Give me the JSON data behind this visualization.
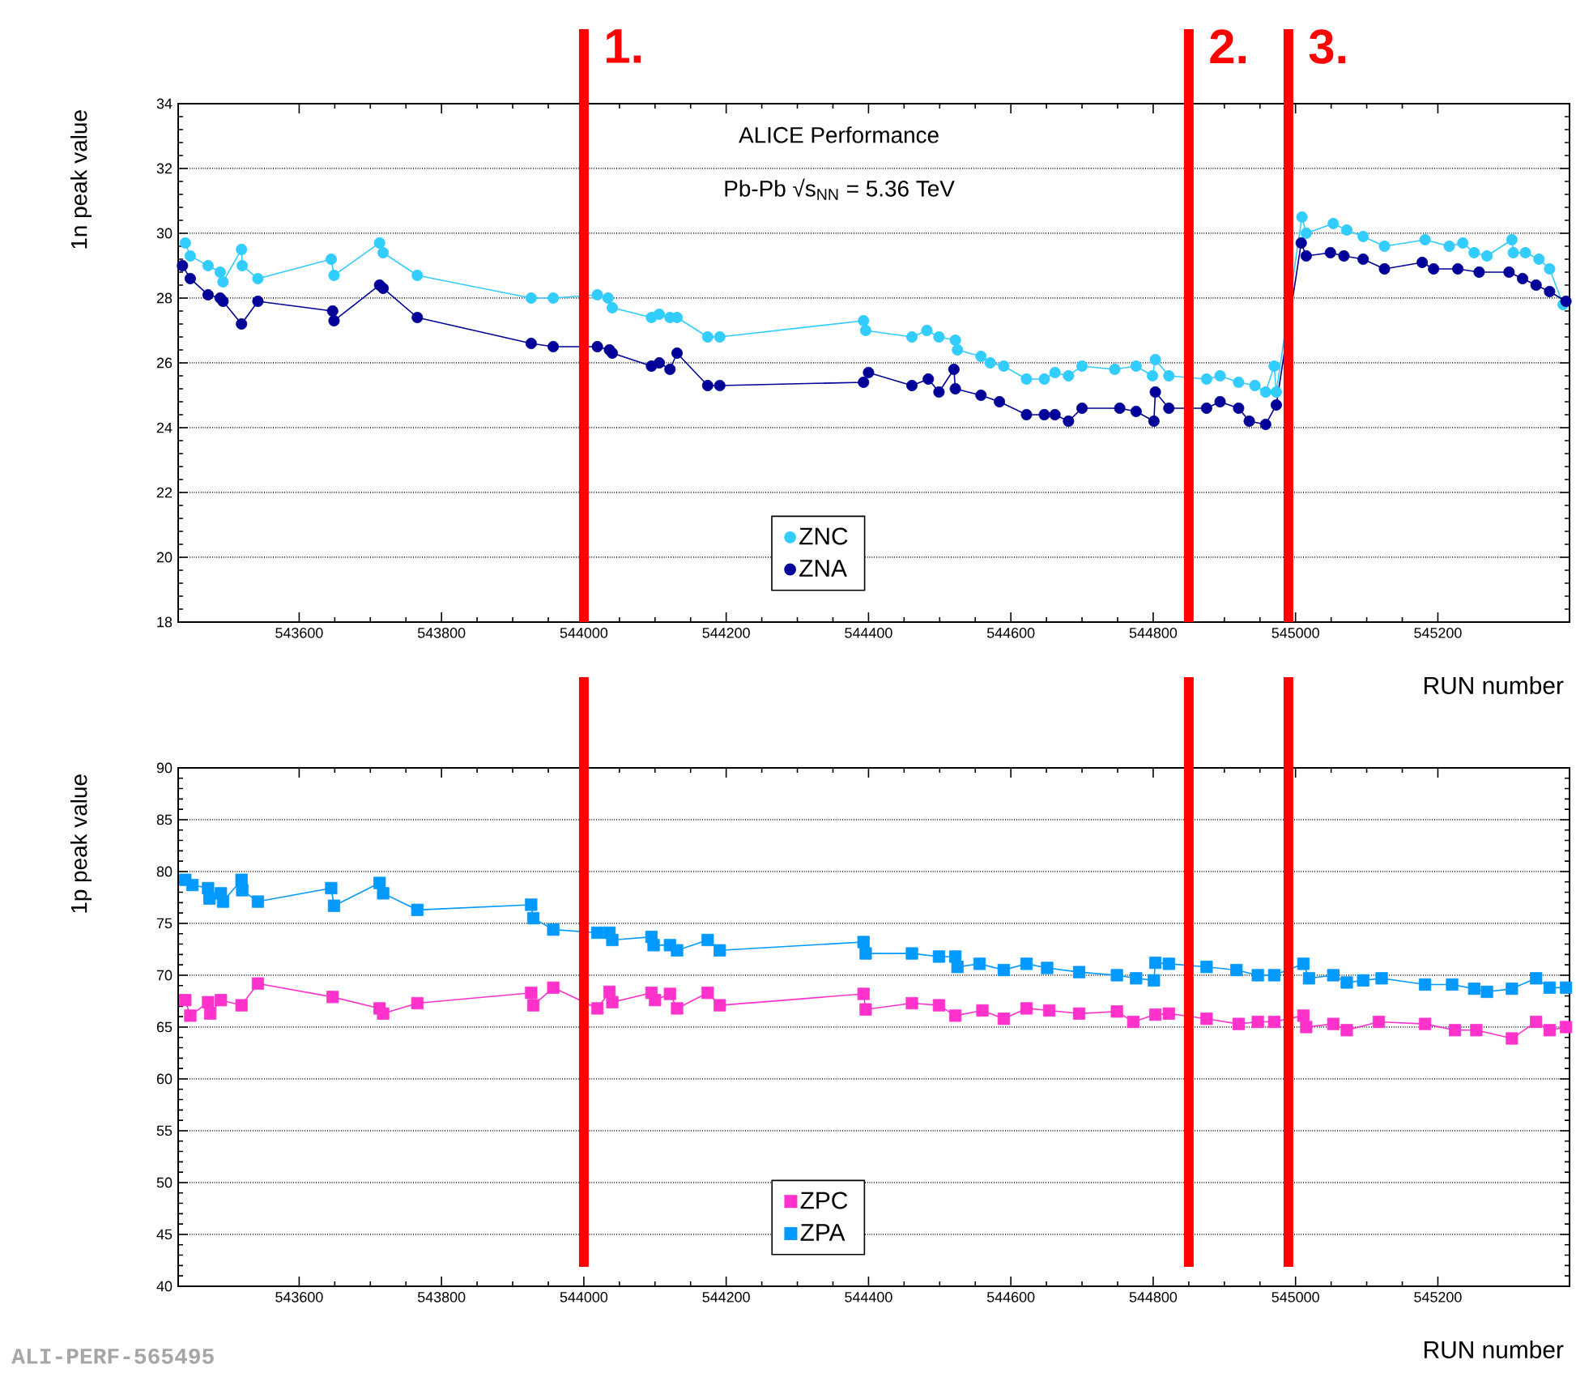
{
  "chart_data": [
    {
      "type": "line",
      "xlabel": "RUN number",
      "ylabel": "1n peak value",
      "xlim": [
        543430,
        545385
      ],
      "ylim": [
        18,
        34
      ],
      "xticks": [
        543600,
        543800,
        544000,
        544200,
        544400,
        544600,
        544800,
        545000,
        545200
      ],
      "yticks": [
        18,
        20,
        22,
        24,
        26,
        28,
        30,
        32,
        34
      ],
      "grid": "y",
      "legend": "bottom",
      "annotations": [
        "ALICE Performance",
        "Pb-Pb √s$_{NN}$ = 5.36 TeV",
        {
          "text": "1.",
          "x": 544000
        },
        {
          "text": "2.",
          "x": 544850
        },
        {
          "text": "3.",
          "x": 544990
        }
      ],
      "ref_lines": [
        {
          "axis": "x",
          "value": 544000,
          "color": "#ff0000"
        },
        {
          "axis": "x",
          "value": 544850,
          "color": "#ff0000"
        },
        {
          "axis": "x",
          "value": 544990,
          "color": "#ff0000"
        }
      ],
      "series": [
        {
          "name": "ZNC",
          "color": "#33ccff",
          "marker": "circle",
          "x": [
            543440,
            543447,
            543472,
            543489,
            543493,
            543519,
            543520,
            543542,
            543645,
            543649,
            543713,
            543718,
            543766,
            543926,
            543957,
            544019,
            544034,
            544040,
            544095,
            544106,
            544121,
            544131,
            544174,
            544191,
            544393,
            544396,
            544461,
            544482,
            544499,
            544522,
            544525,
            544558,
            544571,
            544590,
            544622,
            544647,
            544662,
            544681,
            544700,
            544746,
            544776,
            544799,
            544803,
            544822,
            544875,
            544894,
            544920,
            544943,
            544958,
            544970,
            544973,
            545009,
            545015,
            545053,
            545072,
            545095,
            545125,
            545182,
            545216,
            545235,
            545251,
            545269,
            545304,
            545306,
            545323,
            545342,
            545357,
            545376
          ],
          "values": [
            29.7,
            29.3,
            29.0,
            28.8,
            28.5,
            29.5,
            29.0,
            28.6,
            29.2,
            28.7,
            29.7,
            29.4,
            28.7,
            28.0,
            28.0,
            28.1,
            28.0,
            27.7,
            27.4,
            27.5,
            27.4,
            27.4,
            26.8,
            26.8,
            27.3,
            27.0,
            26.8,
            27.0,
            26.8,
            26.7,
            26.4,
            26.2,
            26.0,
            25.9,
            25.5,
            25.5,
            25.7,
            25.6,
            25.9,
            25.8,
            25.9,
            25.6,
            26.1,
            25.6,
            25.5,
            25.6,
            25.4,
            25.3,
            25.1,
            25.9,
            25.1,
            30.5,
            30.0,
            30.3,
            30.1,
            29.9,
            29.6,
            29.8,
            29.6,
            29.7,
            29.4,
            29.3,
            29.8,
            29.4,
            29.4,
            29.2,
            28.9,
            27.8
          ]
        },
        {
          "name": "ZNA",
          "color": "#000099",
          "marker": "circle",
          "x": [
            543436,
            543447,
            543472,
            543489,
            543493,
            543519,
            543542,
            543647,
            543649,
            543713,
            543718,
            543766,
            543926,
            543957,
            544019,
            544036,
            544040,
            544095,
            544106,
            544121,
            544131,
            544174,
            544191,
            544393,
            544400,
            544461,
            544484,
            544499,
            544520,
            544522,
            544558,
            544584,
            544622,
            544647,
            544662,
            544681,
            544700,
            544753,
            544776,
            544801,
            544803,
            544822,
            544875,
            544894,
            544920,
            544935,
            544958,
            544973,
            545008,
            545015,
            545049,
            545068,
            545095,
            545125,
            545178,
            545194,
            545228,
            545258,
            545300,
            545319,
            545338,
            545357,
            545380
          ],
          "values": [
            29.0,
            28.6,
            28.1,
            28.0,
            27.9,
            27.2,
            27.9,
            27.6,
            27.3,
            28.4,
            28.3,
            27.4,
            26.6,
            26.5,
            26.5,
            26.4,
            26.3,
            25.9,
            26.0,
            25.8,
            26.3,
            25.3,
            25.3,
            25.4,
            25.7,
            25.3,
            25.5,
            25.1,
            25.8,
            25.2,
            25.0,
            24.8,
            24.4,
            24.4,
            24.4,
            24.2,
            24.6,
            24.6,
            24.5,
            24.2,
            25.1,
            24.6,
            24.6,
            24.8,
            24.6,
            24.2,
            24.1,
            24.7,
            29.7,
            29.3,
            29.4,
            29.3,
            29.2,
            28.9,
            29.1,
            28.9,
            28.9,
            28.8,
            28.8,
            28.6,
            28.4,
            28.2,
            27.9
          ]
        }
      ]
    },
    {
      "type": "line",
      "xlabel": "RUN number",
      "ylabel": "1p peak value",
      "xlim": [
        543430,
        545385
      ],
      "ylim": [
        40,
        90
      ],
      "xticks": [
        543600,
        543800,
        544000,
        544200,
        544400,
        544600,
        544800,
        545000,
        545200
      ],
      "yticks": [
        40,
        45,
        50,
        55,
        60,
        65,
        70,
        75,
        80,
        85,
        90
      ],
      "grid": "y",
      "legend": "bottom",
      "annotations": [
        "ALI-PERF-565495"
      ],
      "ref_lines": [
        {
          "axis": "x",
          "value": 544000,
          "color": "#ff0000"
        },
        {
          "axis": "x",
          "value": 544850,
          "color": "#ff0000"
        },
        {
          "axis": "x",
          "value": 544990,
          "color": "#ff0000"
        }
      ],
      "series": [
        {
          "name": "ZPC",
          "color": "#ff33cc",
          "marker": "square",
          "x": [
            543440,
            543447,
            543472,
            543475,
            543490,
            543519,
            543542,
            543647,
            543713,
            543718,
            543766,
            543926,
            543929,
            543957,
            544019,
            544036,
            544040,
            544095,
            544100,
            544121,
            544131,
            544174,
            544191,
            544393,
            544396,
            544461,
            544499,
            544522,
            544560,
            544590,
            544622,
            544654,
            544696,
            544749,
            544772,
            544803,
            544822,
            544875,
            544920,
            544947,
            544970,
            545011,
            545015,
            545053,
            545072,
            545117,
            545182,
            545224,
            545254,
            545304,
            545338,
            545357,
            545380
          ],
          "values": [
            67.6,
            66.1,
            67.4,
            66.3,
            67.6,
            67.1,
            69.2,
            67.9,
            66.8,
            66.3,
            67.3,
            68.3,
            67.1,
            68.8,
            66.8,
            68.4,
            67.4,
            68.3,
            67.6,
            68.2,
            66.8,
            68.3,
            67.1,
            68.2,
            66.7,
            67.3,
            67.1,
            66.1,
            66.6,
            65.8,
            66.8,
            66.6,
            66.3,
            66.5,
            65.5,
            66.2,
            66.3,
            65.8,
            65.3,
            65.5,
            65.5,
            66.1,
            65.0,
            65.3,
            64.7,
            65.5,
            65.3,
            64.7,
            64.7,
            63.9,
            65.5,
            64.7,
            65.0
          ]
        },
        {
          "name": "ZPA",
          "color": "#0099ff",
          "marker": "square",
          "x": [
            543440,
            543450,
            543472,
            543474,
            543490,
            543493,
            543519,
            543520,
            543542,
            543645,
            543649,
            543713,
            543718,
            543766,
            543926,
            543929,
            543957,
            544019,
            544036,
            544040,
            544095,
            544098,
            544121,
            544131,
            544174,
            544191,
            544393,
            544396,
            544461,
            544499,
            544522,
            544525,
            544556,
            544590,
            544622,
            544651,
            544696,
            544749,
            544776,
            544801,
            544803,
            544822,
            544875,
            544917,
            544947,
            544970,
            545011,
            545019,
            545053,
            545072,
            545095,
            545121,
            545182,
            545220,
            545251,
            545269,
            545304,
            545338,
            545357,
            545380
          ],
          "values": [
            79.2,
            78.7,
            78.4,
            77.4,
            77.9,
            77.1,
            79.2,
            78.2,
            77.1,
            78.4,
            76.7,
            78.9,
            77.9,
            76.3,
            76.8,
            75.5,
            74.4,
            74.1,
            74.1,
            73.4,
            73.7,
            72.9,
            72.9,
            72.4,
            73.4,
            72.4,
            73.2,
            72.1,
            72.1,
            71.8,
            71.8,
            70.8,
            71.1,
            70.5,
            71.1,
            70.7,
            70.3,
            70.0,
            69.7,
            69.5,
            71.2,
            71.1,
            70.8,
            70.5,
            70.0,
            70.0,
            71.1,
            69.7,
            70.0,
            69.3,
            69.5,
            69.7,
            69.1,
            69.1,
            68.7,
            68.4,
            68.7,
            69.7,
            68.8,
            68.8
          ]
        }
      ]
    }
  ]
}
